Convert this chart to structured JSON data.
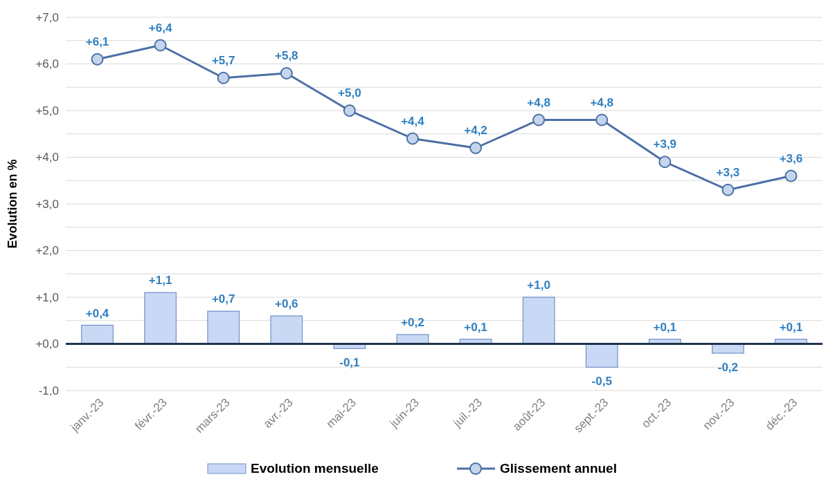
{
  "chart_data": {
    "type": "bar",
    "ylabel": "Evolution en %",
    "categories": [
      "janv.-23",
      "févr.-23",
      "mars-23",
      "avr.-23",
      "mai-23",
      "juin-23",
      "juil.-23",
      "août-23",
      "sept.-23",
      "oct.-23",
      "nov.-23",
      "déc.-23"
    ],
    "series": [
      {
        "name": "Evolution mensuelle",
        "color": "#c9d9f5",
        "values": [
          0.4,
          1.1,
          0.7,
          0.6,
          -0.1,
          0.2,
          0.1,
          1.0,
          -0.5,
          0.1,
          -0.2,
          0.1
        ],
        "value_labels": [
          "+0,4",
          "+1,1",
          "+0,7",
          "+0,6",
          "-0,1",
          "+0,2",
          "+0,1",
          "+1,0",
          "-0,5",
          "+0,1",
          "-0,2",
          "+0,1"
        ]
      },
      {
        "name": "Glissement annuel",
        "type": "line",
        "color": "#4a6fa5",
        "marker": "circle",
        "values": [
          6.1,
          6.4,
          5.7,
          5.8,
          5.0,
          4.4,
          4.2,
          4.8,
          4.8,
          3.9,
          3.3,
          3.6
        ],
        "value_labels": [
          "+6,1",
          "+6,4",
          "+5,7",
          "+5,8",
          "+5,0",
          "+4,4",
          "+4,2",
          "+4,8",
          "+4,8",
          "+3,9",
          "+3,3",
          "+3,6"
        ]
      }
    ],
    "ylim": [
      -1,
      7
    ],
    "yticks": [
      {
        "value": -1,
        "label": "-1,0"
      },
      {
        "value": -0.5,
        "label": null
      },
      {
        "value": 0,
        "label": "+0,0"
      },
      {
        "value": 0.5,
        "label": null
      },
      {
        "value": 1,
        "label": "+1,0"
      },
      {
        "value": 1.5,
        "label": null
      },
      {
        "value": 2,
        "label": "+2,0"
      },
      {
        "value": 2.5,
        "label": null
      },
      {
        "value": 3,
        "label": "+3,0"
      },
      {
        "value": 3.5,
        "label": null
      },
      {
        "value": 4,
        "label": "+4,0"
      },
      {
        "value": 4.5,
        "label": null
      },
      {
        "value": 5,
        "label": "+5,0"
      },
      {
        "value": 5.5,
        "label": null
      },
      {
        "value": 6,
        "label": "+6,0"
      },
      {
        "value": 6.5,
        "label": null
      },
      {
        "value": 7,
        "label": "+7,0"
      }
    ],
    "grid": "y",
    "legend": "bottom"
  }
}
